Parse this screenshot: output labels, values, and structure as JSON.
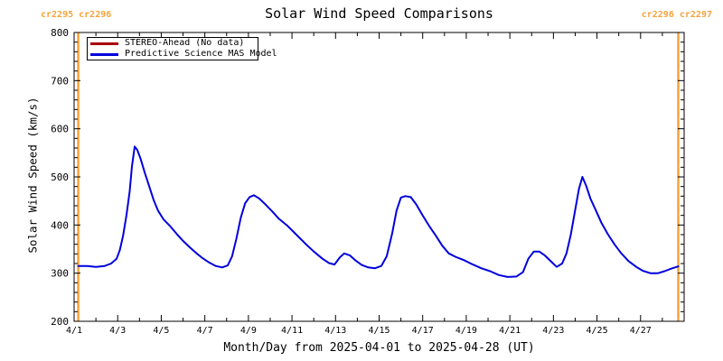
{
  "header": {
    "title": "Solar Wind Speed Comparisons",
    "corner_label_left": "cr2295 cr2296",
    "corner_label_right": "cr2296 cr2297",
    "corner_label_color": "#f7a23b"
  },
  "legend": {
    "items": [
      {
        "label": "STEREO-Ahead (No data)",
        "color": "#aa0000"
      },
      {
        "label": "Predictive Science MAS Model",
        "color": "#0000dd"
      }
    ]
  },
  "chart_data": {
    "type": "line",
    "title": "Solar Wind Speed Comparisons",
    "xlabel": "Month/Day from 2025-04-01 to 2025-04-28 (UT)",
    "ylabel": "Solar Wind Speed (km/s)",
    "x_unit": "day of April 2025",
    "xlim_days": [
      1,
      29
    ],
    "ylim": [
      200,
      800
    ],
    "x_tick_labels": [
      "4/1",
      "4/3",
      "4/5",
      "4/7",
      "4/9",
      "4/11",
      "4/13",
      "4/15",
      "4/17",
      "4/19",
      "4/21",
      "4/23",
      "4/25",
      "4/27"
    ],
    "x_major_tick_days": [
      1,
      3,
      5,
      7,
      9,
      11,
      13,
      15,
      17,
      19,
      21,
      23,
      25,
      27
    ],
    "x_minor_step_days": 1,
    "y_major_ticks": [
      200,
      300,
      400,
      500,
      600,
      700,
      800
    ],
    "y_minor_step": 20,
    "grid": false,
    "legend_position": "top-left",
    "axis_color": "#000000",
    "carrington_boundaries": {
      "color": "#f7a23b",
      "line_width": 2.5,
      "days": [
        1.19,
        28.73
      ]
    },
    "series": [
      {
        "name": "STEREO-Ahead (No data)",
        "color": "#aa0000",
        "points": []
      },
      {
        "name": "Predictive Science MAS Model",
        "color": "#0000dd",
        "points": [
          [
            1.19,
            315
          ],
          [
            1.6,
            315
          ],
          [
            2.0,
            313
          ],
          [
            2.4,
            315
          ],
          [
            2.7,
            320
          ],
          [
            2.95,
            330
          ],
          [
            3.1,
            348
          ],
          [
            3.25,
            378
          ],
          [
            3.4,
            420
          ],
          [
            3.55,
            470
          ],
          [
            3.65,
            520
          ],
          [
            3.78,
            563
          ],
          [
            3.9,
            556
          ],
          [
            4.05,
            538
          ],
          [
            4.25,
            508
          ],
          [
            4.45,
            480
          ],
          [
            4.65,
            452
          ],
          [
            4.85,
            430
          ],
          [
            5.1,
            412
          ],
          [
            5.4,
            398
          ],
          [
            5.7,
            382
          ],
          [
            6.0,
            367
          ],
          [
            6.3,
            354
          ],
          [
            6.6,
            342
          ],
          [
            6.9,
            331
          ],
          [
            7.2,
            322
          ],
          [
            7.5,
            315
          ],
          [
            7.8,
            312
          ],
          [
            8.05,
            316
          ],
          [
            8.25,
            335
          ],
          [
            8.45,
            372
          ],
          [
            8.65,
            415
          ],
          [
            8.85,
            445
          ],
          [
            9.05,
            458
          ],
          [
            9.25,
            462
          ],
          [
            9.5,
            455
          ],
          [
            9.8,
            442
          ],
          [
            10.1,
            428
          ],
          [
            10.4,
            413
          ],
          [
            10.8,
            398
          ],
          [
            11.2,
            380
          ],
          [
            11.6,
            362
          ],
          [
            12.0,
            345
          ],
          [
            12.4,
            330
          ],
          [
            12.7,
            321
          ],
          [
            12.95,
            318
          ],
          [
            13.2,
            333
          ],
          [
            13.4,
            341
          ],
          [
            13.65,
            337
          ],
          [
            13.9,
            327
          ],
          [
            14.2,
            317
          ],
          [
            14.5,
            312
          ],
          [
            14.8,
            310
          ],
          [
            15.1,
            315
          ],
          [
            15.35,
            335
          ],
          [
            15.6,
            383
          ],
          [
            15.8,
            430
          ],
          [
            16.0,
            457
          ],
          [
            16.2,
            460
          ],
          [
            16.45,
            458
          ],
          [
            16.7,
            443
          ],
          [
            17.0,
            420
          ],
          [
            17.3,
            398
          ],
          [
            17.6,
            378
          ],
          [
            17.9,
            357
          ],
          [
            18.2,
            341
          ],
          [
            18.5,
            334
          ],
          [
            18.9,
            327
          ],
          [
            19.3,
            318
          ],
          [
            19.7,
            310
          ],
          [
            20.1,
            304
          ],
          [
            20.5,
            296
          ],
          [
            20.9,
            292
          ],
          [
            21.3,
            293
          ],
          [
            21.6,
            302
          ],
          [
            21.85,
            330
          ],
          [
            22.1,
            345
          ],
          [
            22.35,
            345
          ],
          [
            22.6,
            337
          ],
          [
            22.9,
            324
          ],
          [
            23.15,
            313
          ],
          [
            23.4,
            320
          ],
          [
            23.6,
            341
          ],
          [
            23.8,
            380
          ],
          [
            24.0,
            432
          ],
          [
            24.17,
            475
          ],
          [
            24.33,
            500
          ],
          [
            24.5,
            482
          ],
          [
            24.7,
            455
          ],
          [
            24.95,
            430
          ],
          [
            25.2,
            405
          ],
          [
            25.5,
            381
          ],
          [
            25.8,
            360
          ],
          [
            26.1,
            342
          ],
          [
            26.45,
            325
          ],
          [
            26.8,
            313
          ],
          [
            27.1,
            305
          ],
          [
            27.45,
            300
          ],
          [
            27.8,
            300
          ],
          [
            28.1,
            304
          ],
          [
            28.45,
            310
          ],
          [
            28.73,
            314
          ]
        ]
      }
    ]
  }
}
